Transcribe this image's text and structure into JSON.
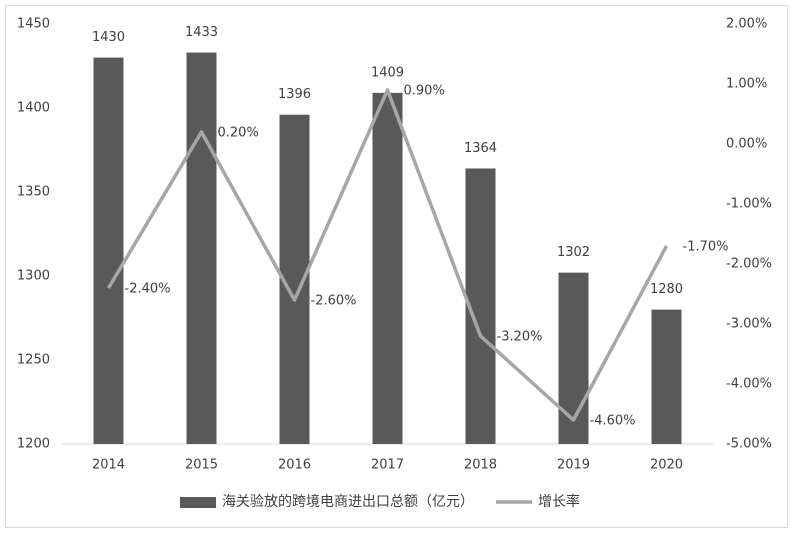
{
  "chart_data": {
    "type": "bar-line",
    "categories": [
      "2014",
      "2015",
      "2016",
      "2017",
      "2018",
      "2019",
      "2020"
    ],
    "series": [
      {
        "name": "海关验放的跨境电商进出口总额（亿元）",
        "type": "bar",
        "color": "#595959",
        "values": [
          1430,
          1433,
          1396,
          1409,
          1364,
          1302,
          1280
        ]
      },
      {
        "name": "增长率",
        "type": "line",
        "axis": "y2",
        "color": "#a6a6a6",
        "values": [
          -2.4,
          0.2,
          -2.6,
          0.9,
          -3.2,
          -4.6,
          -1.7
        ],
        "value_labels": [
          "-2.40%",
          "0.20%",
          "-2.60%",
          "0.90%",
          "-3.20%",
          "-4.60%",
          "-1.70%"
        ]
      }
    ],
    "ylim": [
      1200,
      1450
    ],
    "yticks": [
      1200,
      1250,
      1300,
      1350,
      1400,
      1450
    ],
    "y2lim": [
      -5,
      2
    ],
    "y2ticks": [
      {
        "value": -5,
        "label": "-5.00%"
      },
      {
        "value": -4,
        "label": "-4.00%"
      },
      {
        "value": -3,
        "label": "-3.00%"
      },
      {
        "value": -2,
        "label": "-2.00%"
      },
      {
        "value": -1,
        "label": "-1.00%"
      },
      {
        "value": 0,
        "label": "0.00%"
      },
      {
        "value": 1,
        "label": "1.00%"
      },
      {
        "value": 2,
        "label": "2.00%"
      }
    ],
    "legend": "bottom"
  }
}
